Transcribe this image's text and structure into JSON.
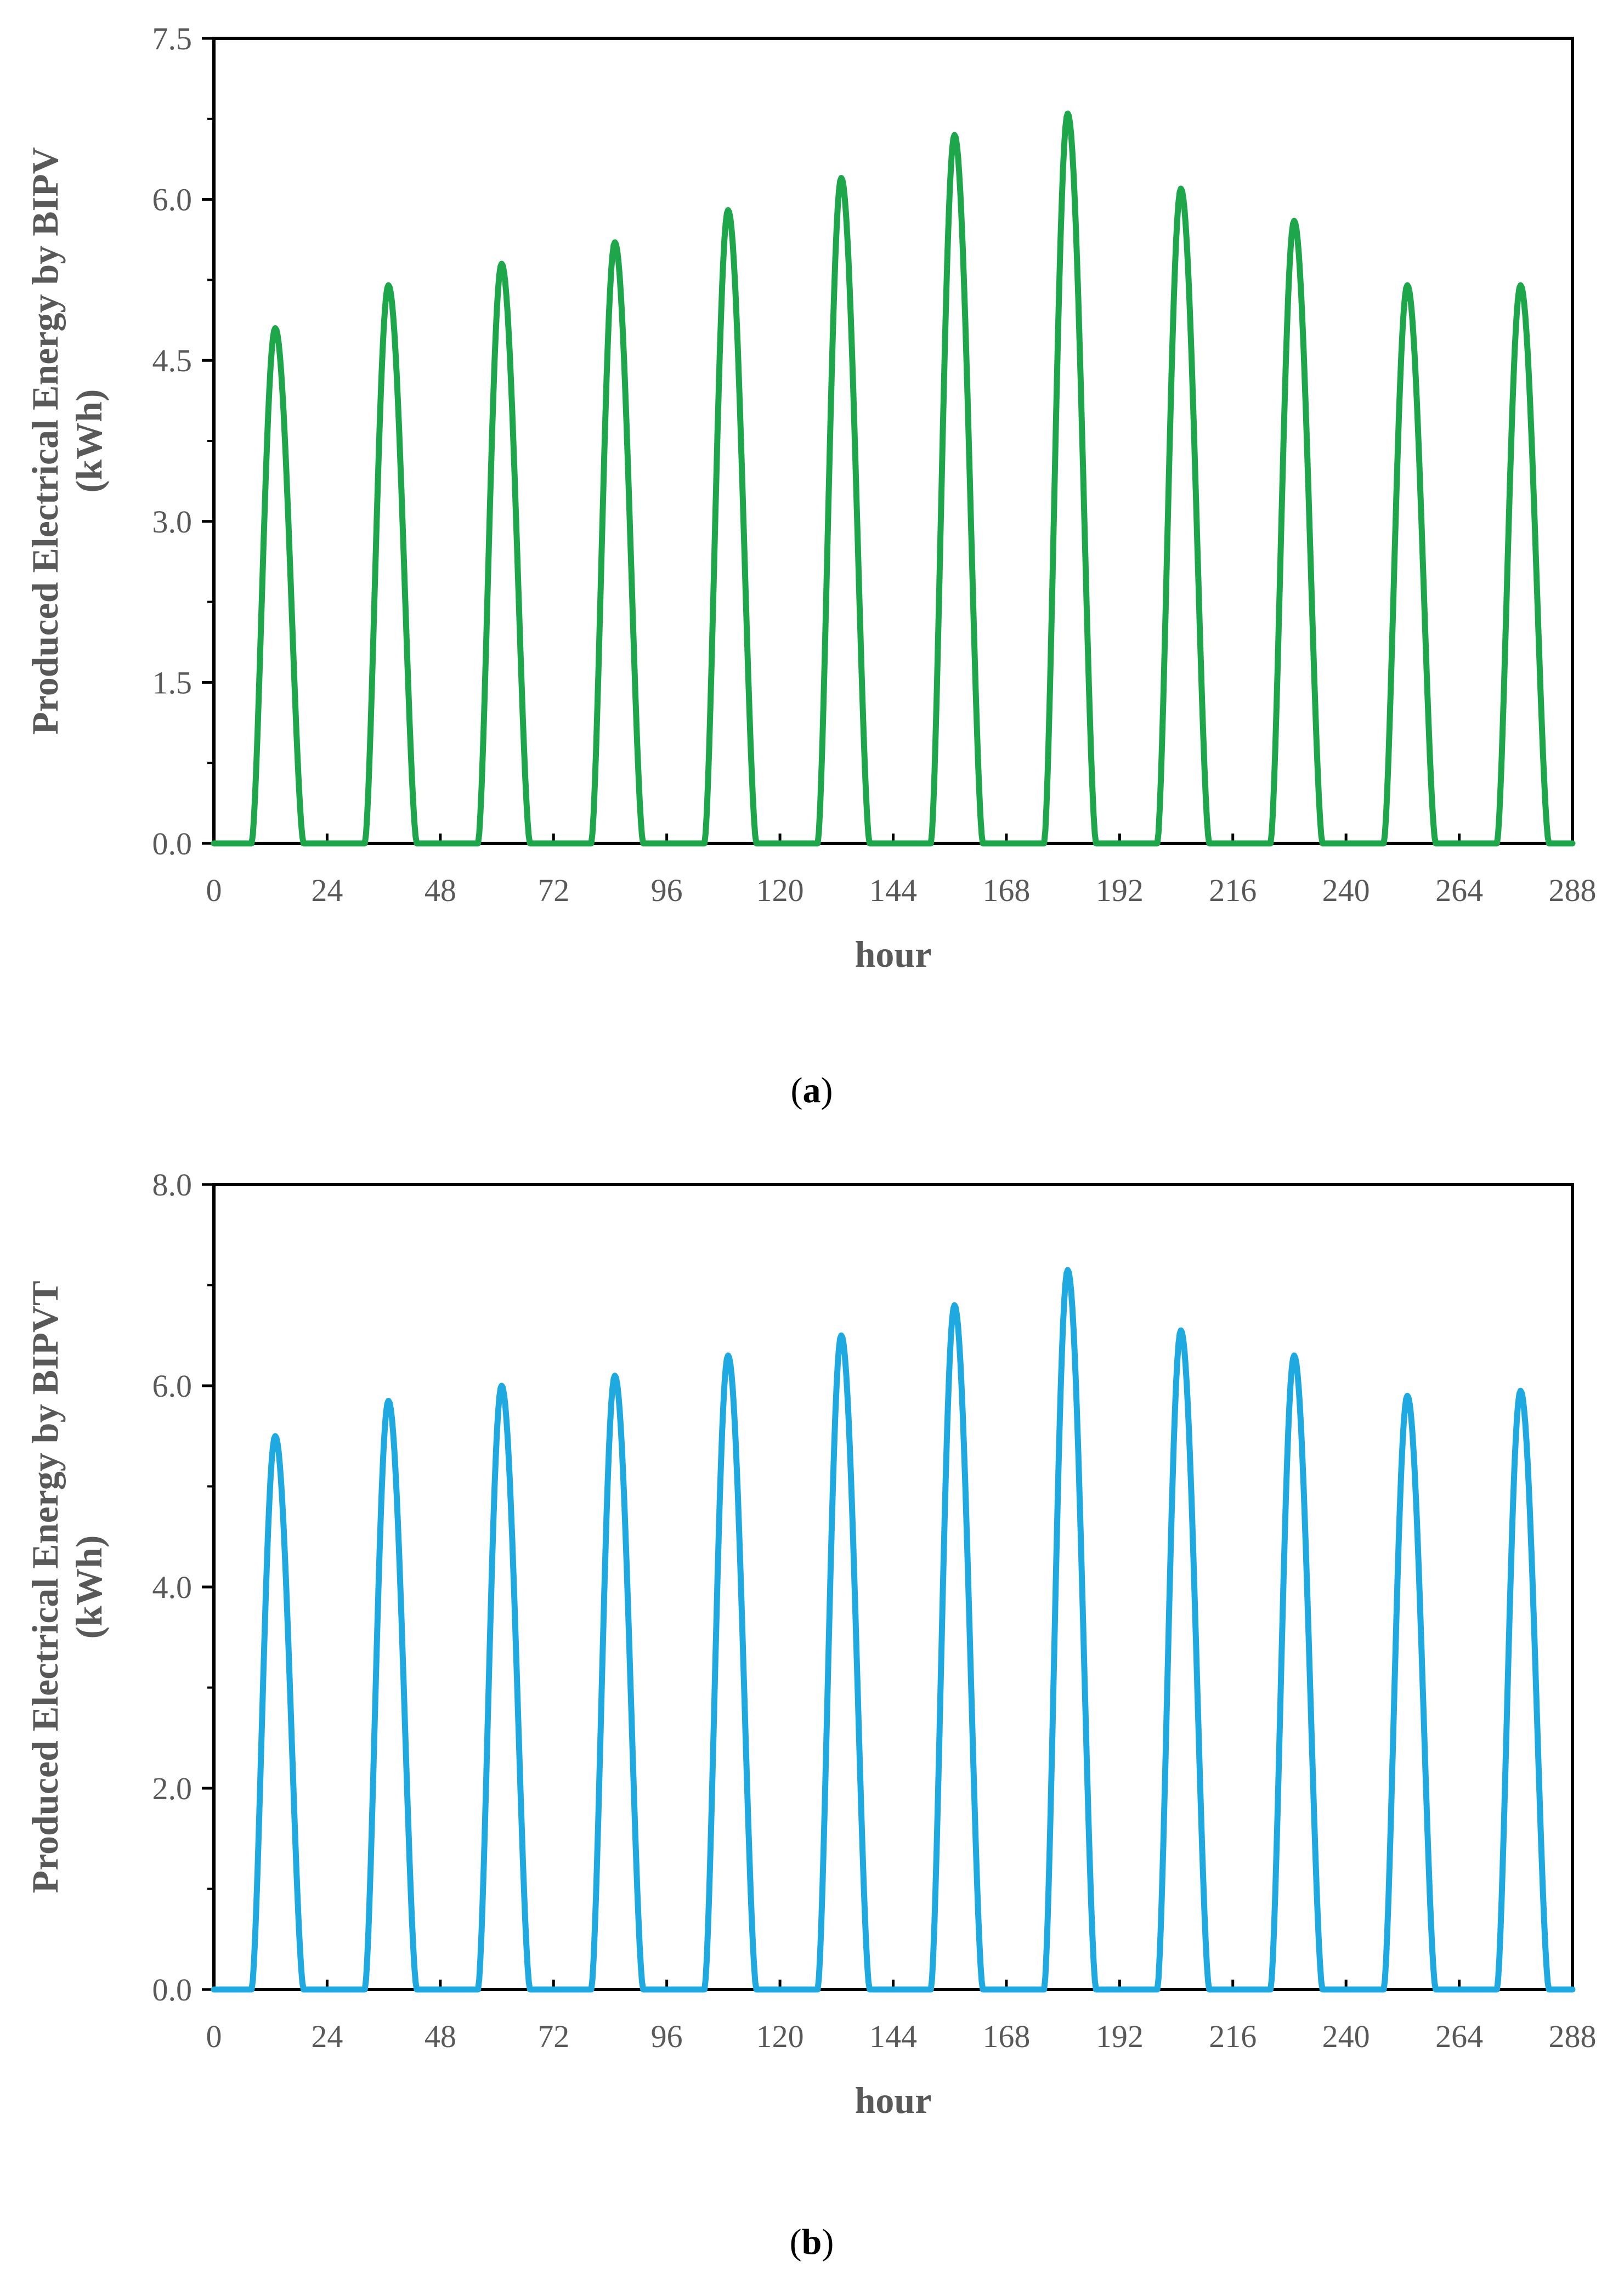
{
  "chart_data": [
    {
      "type": "line",
      "panel_label": "a",
      "title": "",
      "xlabel": "hour",
      "ylabel": "Produced Electrical Energy by BIPV",
      "ylabel_unit": "(kWh)",
      "xlim": [
        0,
        288
      ],
      "ylim": [
        0,
        7.5
      ],
      "xticks": [
        0,
        24,
        48,
        72,
        96,
        120,
        144,
        168,
        192,
        216,
        240,
        264,
        288
      ],
      "yticks": [
        0.0,
        1.5,
        3.0,
        4.5,
        6.0,
        7.5
      ],
      "ytick_labels": [
        "0.0",
        "1.5",
        "3.0",
        "4.5",
        "6.0",
        "7.5"
      ],
      "grid": false,
      "legend": "none",
      "series": [
        {
          "name": "BIPV",
          "color": "#1ea64b",
          "daily_peaks": [
            4.8,
            5.2,
            5.4,
            5.6,
            5.9,
            6.2,
            6.6,
            6.8,
            6.1,
            5.8,
            5.2,
            5.2
          ],
          "peak_hours": [
            13,
            37,
            61,
            85,
            109,
            133,
            157,
            181,
            205,
            229,
            253,
            277
          ],
          "sunrise_hour": 8,
          "sunset_hour": 19
        }
      ]
    },
    {
      "type": "line",
      "panel_label": "b",
      "title": "",
      "xlabel": "hour",
      "ylabel": "Produced Electrical Energy by BIPVT",
      "ylabel_unit": "(kWh)",
      "xlim": [
        0,
        288
      ],
      "ylim": [
        0,
        8.0
      ],
      "xticks": [
        0,
        24,
        48,
        72,
        96,
        120,
        144,
        168,
        192,
        216,
        240,
        264,
        288
      ],
      "yticks": [
        0.0,
        2.0,
        4.0,
        6.0,
        8.0
      ],
      "ytick_labels": [
        "0.0",
        "2.0",
        "4.0",
        "6.0",
        "8.0"
      ],
      "grid": false,
      "legend": "none",
      "series": [
        {
          "name": "BIPVT",
          "color": "#1fa9e1",
          "daily_peaks": [
            5.5,
            5.85,
            6.0,
            6.1,
            6.3,
            6.5,
            6.8,
            7.15,
            6.55,
            6.3,
            5.9,
            5.95
          ],
          "peak_hours": [
            13,
            37,
            61,
            85,
            109,
            133,
            157,
            181,
            205,
            229,
            253,
            277
          ],
          "sunrise_hour": 8,
          "sunset_hour": 19
        }
      ]
    }
  ],
  "captions": [
    {
      "open": "(",
      "label": "a",
      "close": ")"
    },
    {
      "open": "(",
      "label": "b",
      "close": ")"
    }
  ]
}
